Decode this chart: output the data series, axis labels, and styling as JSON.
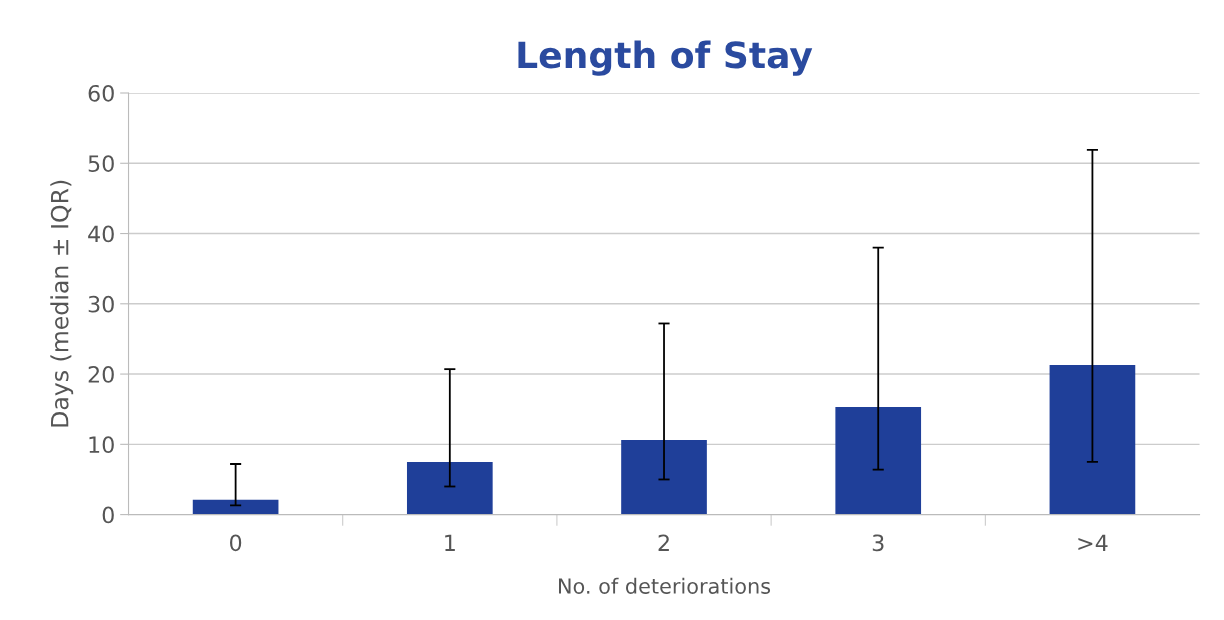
{
  "chart_data": {
    "type": "bar",
    "title": "Length of Stay",
    "xlabel": "No. of deteriorations",
    "ylabel": "Days (median ± IQR)",
    "categories": [
      "0",
      "1",
      "2",
      "3",
      ">4"
    ],
    "values": [
      2.1,
      7.5,
      10.6,
      15.3,
      21.3
    ],
    "errors": [
      [
        1.3,
        7.2
      ],
      [
        4.0,
        20.7
      ],
      [
        5.0,
        27.2
      ],
      [
        6.4,
        38.0
      ],
      [
        7.5,
        51.9
      ]
    ],
    "color": "#1f3f99",
    "ylim": [
      0,
      60
    ],
    "yticks": [
      0,
      10,
      20,
      30,
      40,
      50,
      60
    ],
    "grid": "y"
  }
}
